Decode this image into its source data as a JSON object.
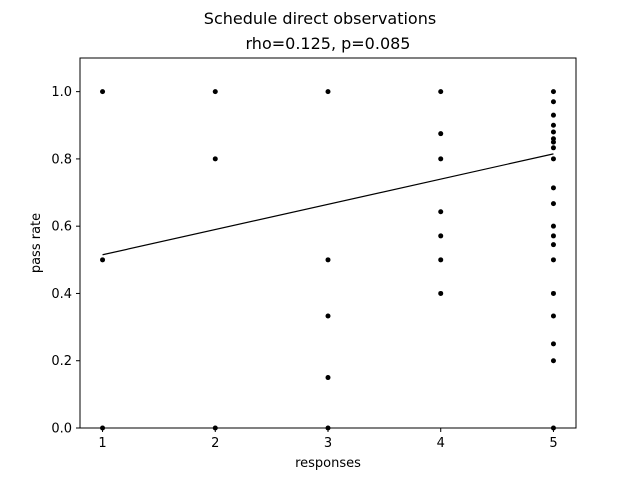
{
  "chart_data": {
    "type": "scatter",
    "title": "Schedule direct observations",
    "subtitle": "rho=0.125, p=0.085",
    "xlabel": "responses",
    "ylabel": "pass rate",
    "xlim": [
      0.8,
      5.2
    ],
    "ylim": [
      0.0,
      1.1
    ],
    "xticks": [
      1,
      2,
      3,
      4,
      5
    ],
    "xtick_labels": [
      "1",
      "2",
      "3",
      "4",
      "5"
    ],
    "yticks": [
      0.0,
      0.2,
      0.4,
      0.6,
      0.8,
      1.0
    ],
    "ytick_labels": [
      "0.0",
      "0.2",
      "0.4",
      "0.6",
      "0.8",
      "1.0"
    ],
    "grid": false,
    "point_color": "#000000",
    "line_color": "#000000",
    "points": [
      {
        "x": 1,
        "y": 1.0
      },
      {
        "x": 1,
        "y": 0.5
      },
      {
        "x": 1,
        "y": 0.0
      },
      {
        "x": 2,
        "y": 1.0
      },
      {
        "x": 2,
        "y": 0.8
      },
      {
        "x": 2,
        "y": 0.0
      },
      {
        "x": 3,
        "y": 1.0
      },
      {
        "x": 3,
        "y": 0.5
      },
      {
        "x": 3,
        "y": 0.333
      },
      {
        "x": 3,
        "y": 0.15
      },
      {
        "x": 3,
        "y": 0.0
      },
      {
        "x": 4,
        "y": 1.0
      },
      {
        "x": 4,
        "y": 0.875
      },
      {
        "x": 4,
        "y": 0.8
      },
      {
        "x": 4,
        "y": 0.643
      },
      {
        "x": 4,
        "y": 0.571
      },
      {
        "x": 4,
        "y": 0.5
      },
      {
        "x": 4,
        "y": 0.4
      },
      {
        "x": 5,
        "y": 1.0
      },
      {
        "x": 5,
        "y": 0.97
      },
      {
        "x": 5,
        "y": 0.93
      },
      {
        "x": 5,
        "y": 0.9
      },
      {
        "x": 5,
        "y": 0.88
      },
      {
        "x": 5,
        "y": 0.86
      },
      {
        "x": 5,
        "y": 0.85
      },
      {
        "x": 5,
        "y": 0.833
      },
      {
        "x": 5,
        "y": 0.8
      },
      {
        "x": 5,
        "y": 0.714
      },
      {
        "x": 5,
        "y": 0.667
      },
      {
        "x": 5,
        "y": 0.6
      },
      {
        "x": 5,
        "y": 0.571
      },
      {
        "x": 5,
        "y": 0.545
      },
      {
        "x": 5,
        "y": 0.5
      },
      {
        "x": 5,
        "y": 0.4
      },
      {
        "x": 5,
        "y": 0.333
      },
      {
        "x": 5,
        "y": 0.25
      },
      {
        "x": 5,
        "y": 0.2
      },
      {
        "x": 5,
        "y": 0.0
      }
    ],
    "trend_line": {
      "x": [
        1,
        5
      ],
      "y": [
        0.515,
        0.815
      ]
    }
  }
}
